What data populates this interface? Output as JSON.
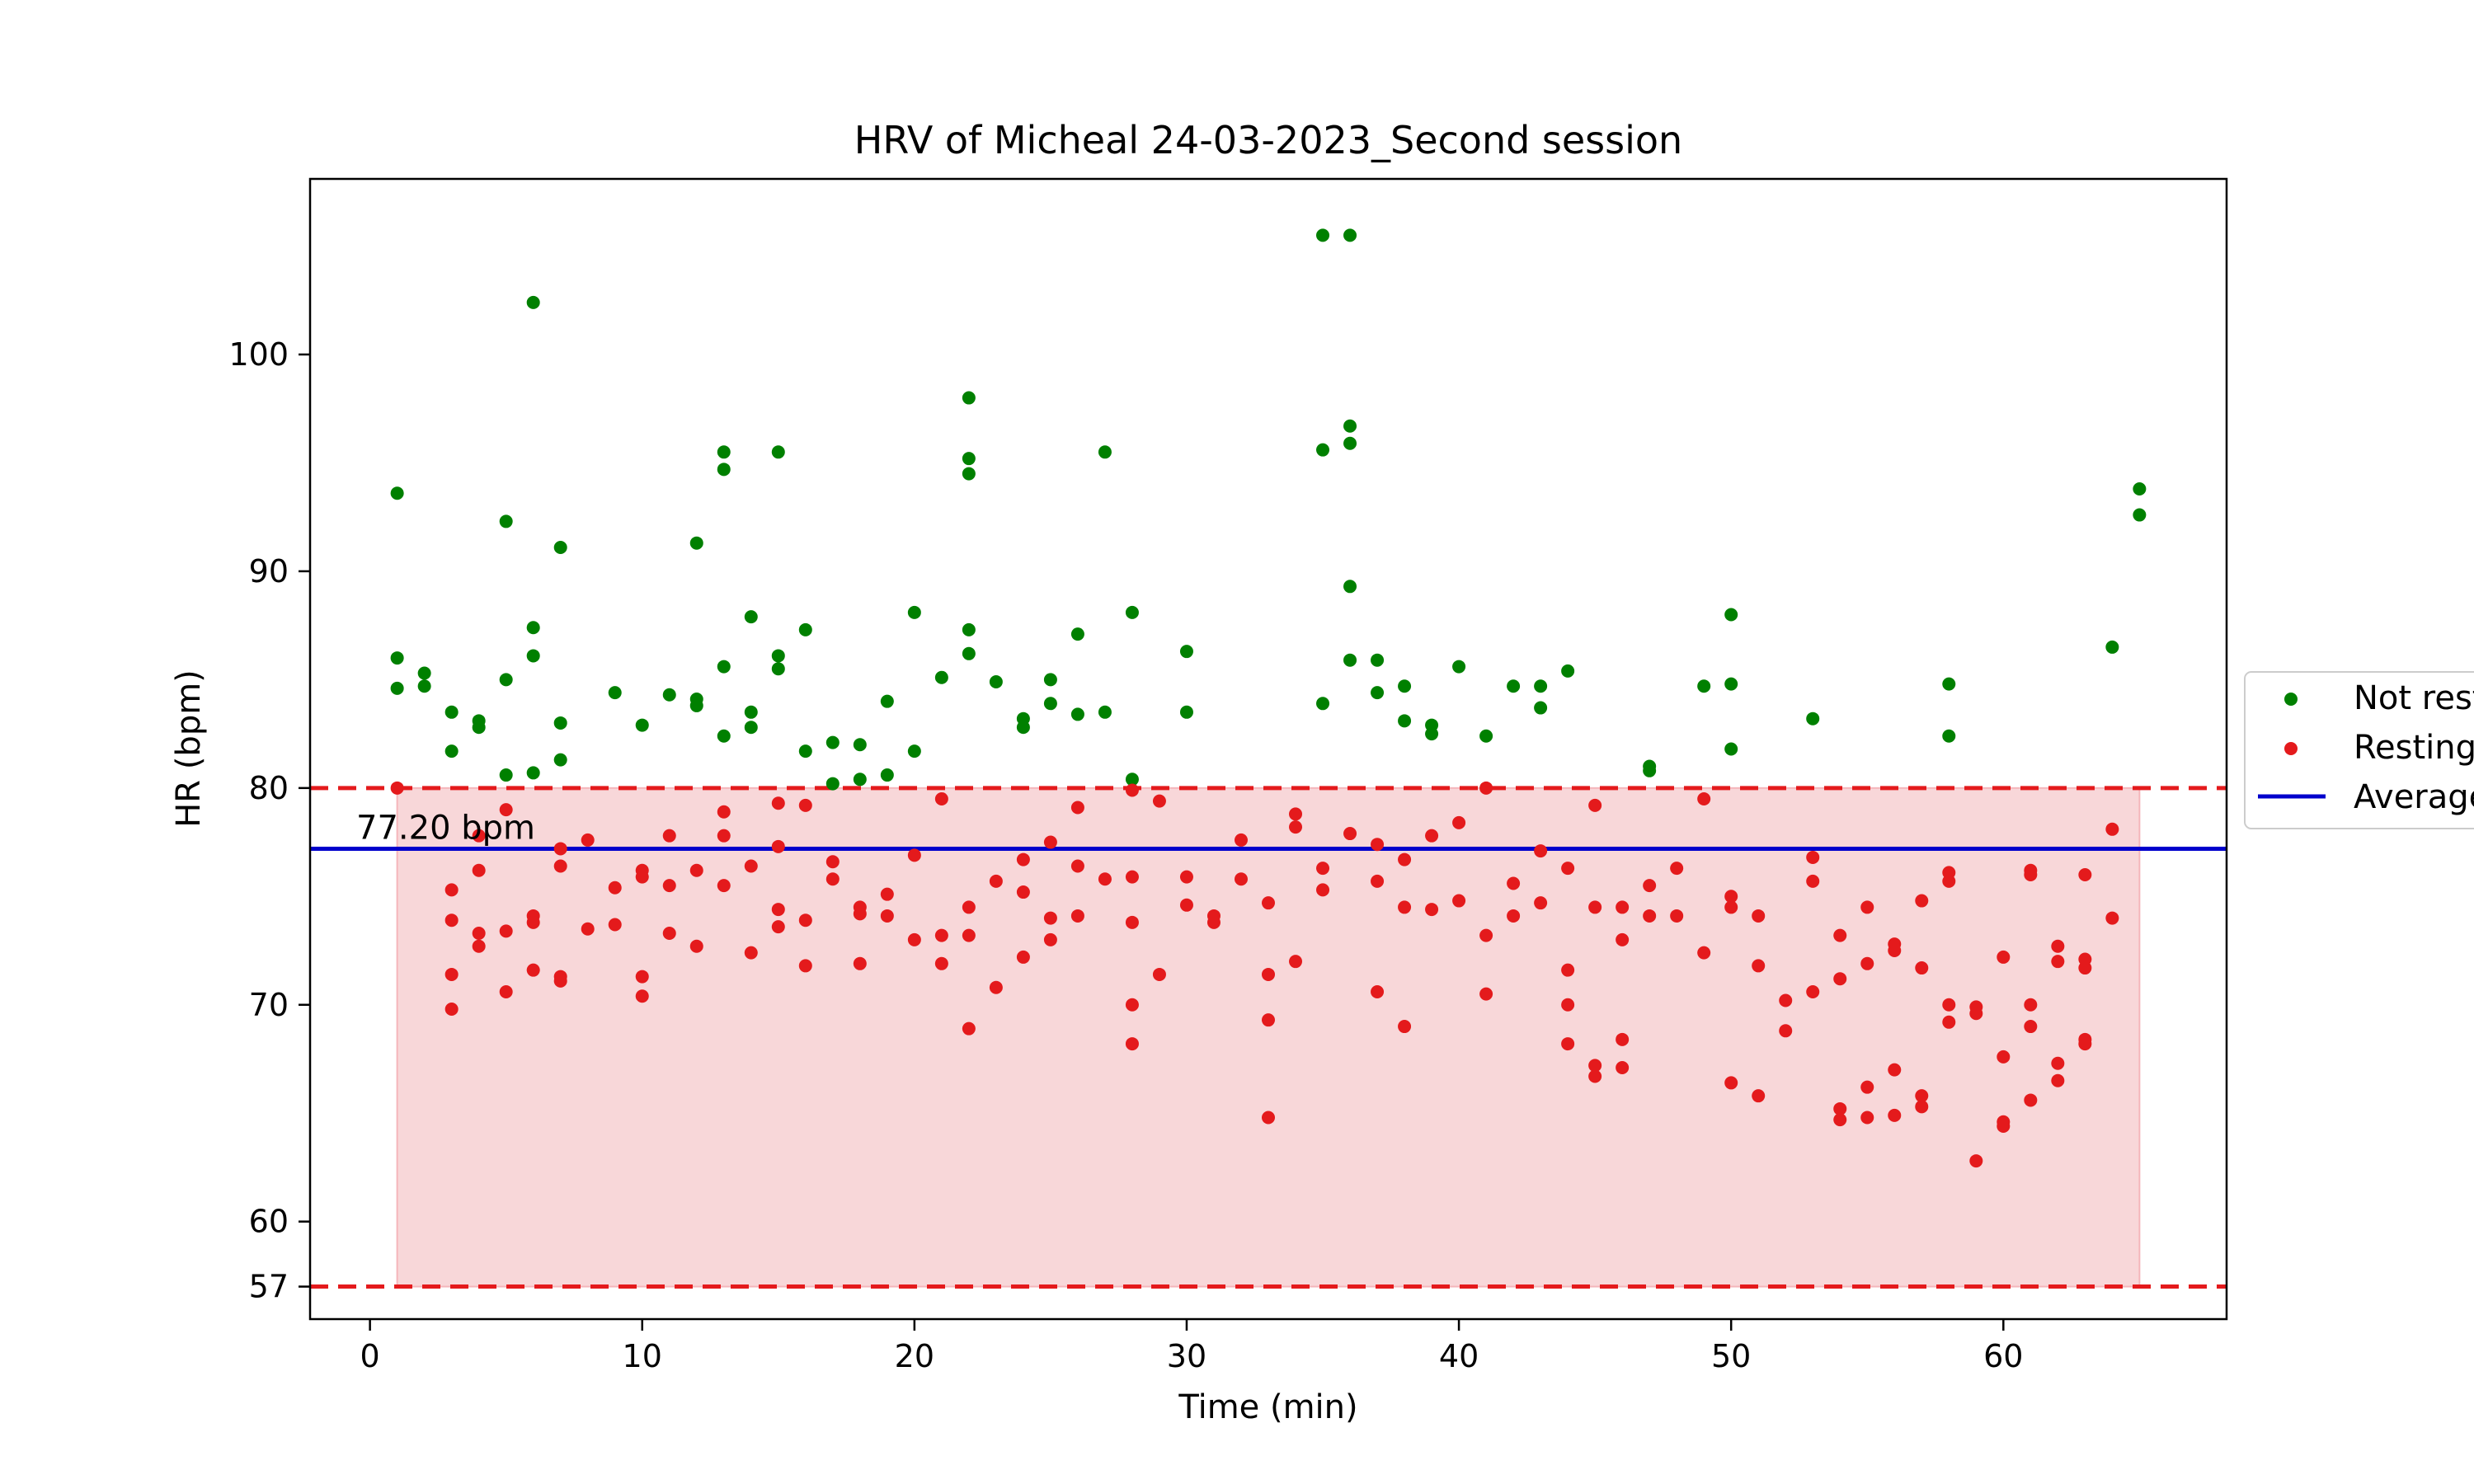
{
  "chart_data": {
    "type": "scatter",
    "title": "HRV of Micheal 24-03-2023_Second session",
    "xlabel": "Time (min)",
    "ylabel": "HR (bpm)",
    "xlim": [
      -2.2,
      68.2
    ],
    "ylim": [
      55.5,
      108.1
    ],
    "xticks": [
      0,
      10,
      20,
      30,
      40,
      50,
      60
    ],
    "yticks": [
      57,
      60,
      70,
      80,
      90,
      100
    ],
    "grid": false,
    "legend_position": "right",
    "resting_band": {
      "lower": 57,
      "upper": 80,
      "x_start": 1,
      "x_end": 65,
      "color": "#f8d7d9"
    },
    "threshold_color": "#e41a1c",
    "average": {
      "value": 77.2,
      "label": "77.20 bpm",
      "color": "#0000cc"
    },
    "legend": [
      {
        "label": "Not resting",
        "marker": "dot",
        "color": "#008000"
      },
      {
        "label": "Resting",
        "marker": "dot",
        "color": "#e41a1c"
      },
      {
        "label": "Average",
        "marker": "line",
        "color": "#0000cc"
      }
    ],
    "series": [
      {
        "name": "Not resting",
        "color": "#008000",
        "x": [
          1,
          1,
          1,
          2,
          2,
          3,
          3,
          4,
          4,
          5,
          5,
          5,
          6,
          6,
          6,
          6,
          7,
          7,
          7,
          9,
          10,
          11,
          12,
          12,
          12,
          13,
          13,
          13,
          13,
          14,
          14,
          14,
          15,
          15,
          15,
          16,
          16,
          17,
          17,
          18,
          18,
          19,
          19,
          20,
          20,
          21,
          22,
          22,
          22,
          22,
          22,
          23,
          24,
          24,
          25,
          25,
          26,
          26,
          27,
          27,
          28,
          28,
          30,
          30,
          35,
          35,
          35,
          36,
          36,
          36,
          36,
          36,
          37,
          37,
          38,
          38,
          39,
          39,
          40,
          41,
          42,
          43,
          43,
          44,
          47,
          47,
          49,
          50,
          50,
          50,
          53,
          58,
          58,
          64,
          65,
          65
        ],
        "y": [
          93.6,
          86.0,
          84.6,
          85.3,
          84.7,
          83.5,
          81.7,
          83.1,
          82.8,
          92.3,
          85.0,
          80.6,
          102.4,
          87.4,
          86.1,
          80.7,
          91.1,
          83.0,
          81.3,
          84.4,
          82.9,
          84.3,
          91.3,
          84.1,
          83.8,
          95.5,
          94.7,
          85.6,
          82.4,
          87.9,
          83.5,
          82.8,
          95.5,
          86.1,
          85.5,
          87.3,
          81.7,
          82.1,
          80.2,
          82.0,
          80.4,
          84.0,
          80.6,
          88.1,
          81.7,
          85.1,
          98.0,
          95.2,
          94.5,
          87.3,
          86.2,
          84.9,
          83.2,
          82.8,
          85.0,
          83.9,
          87.1,
          83.4,
          95.5,
          83.5,
          88.1,
          80.4,
          86.3,
          83.5,
          105.5,
          95.6,
          83.9,
          105.5,
          96.7,
          95.9,
          89.3,
          85.9,
          85.9,
          84.4,
          84.7,
          83.1,
          82.9,
          82.5,
          85.6,
          82.4,
          84.7,
          84.7,
          83.7,
          85.4,
          81.0,
          80.8,
          84.7,
          88.0,
          84.8,
          81.8,
          83.2,
          84.8,
          82.4,
          86.5,
          93.8,
          92.6
        ]
      },
      {
        "name": "Resting",
        "color": "#e41a1c",
        "x": [
          1,
          3,
          3,
          3,
          3,
          4,
          4,
          4,
          4,
          5,
          5,
          5,
          6,
          6,
          6,
          7,
          7,
          7,
          7,
          8,
          8,
          9,
          9,
          10,
          10,
          10,
          10,
          11,
          11,
          11,
          12,
          12,
          13,
          13,
          13,
          14,
          14,
          15,
          15,
          15,
          15,
          16,
          16,
          16,
          17,
          17,
          18,
          18,
          18,
          19,
          19,
          20,
          20,
          21,
          21,
          21,
          22,
          22,
          22,
          23,
          23,
          24,
          24,
          24,
          25,
          25,
          25,
          26,
          26,
          26,
          27,
          28,
          28,
          28,
          28,
          28,
          29,
          29,
          30,
          30,
          31,
          31,
          32,
          32,
          33,
          33,
          33,
          33,
          34,
          34,
          34,
          35,
          35,
          36,
          37,
          37,
          37,
          38,
          38,
          38,
          39,
          39,
          40,
          40,
          41,
          41,
          41,
          42,
          42,
          43,
          43,
          44,
          44,
          44,
          44,
          45,
          45,
          45,
          45,
          46,
          46,
          46,
          46,
          47,
          47,
          48,
          48,
          49,
          49,
          50,
          50,
          50,
          51,
          51,
          51,
          52,
          52,
          53,
          53,
          53,
          54,
          54,
          54,
          54,
          55,
          55,
          55,
          55,
          56,
          56,
          56,
          56,
          57,
          57,
          57,
          57,
          58,
          58,
          58,
          58,
          59,
          59,
          59,
          60,
          60,
          60,
          60,
          61,
          61,
          61,
          61,
          61,
          62,
          62,
          62,
          62,
          63,
          63,
          63,
          63,
          63,
          64,
          64
        ],
        "y": [
          80.0,
          75.3,
          73.9,
          71.4,
          69.8,
          77.8,
          76.2,
          73.3,
          72.7,
          79.0,
          73.4,
          70.6,
          74.1,
          73.8,
          71.6,
          77.2,
          76.4,
          71.3,
          71.1,
          77.6,
          73.5,
          75.4,
          73.7,
          76.2,
          75.9,
          71.3,
          70.4,
          77.8,
          75.5,
          73.3,
          76.2,
          72.7,
          78.9,
          77.8,
          75.5,
          76.4,
          72.4,
          79.3,
          77.3,
          74.4,
          73.6,
          79.2,
          73.9,
          71.8,
          76.6,
          75.8,
          74.5,
          74.2,
          71.9,
          75.1,
          74.1,
          76.9,
          73.0,
          79.5,
          73.2,
          71.9,
          74.5,
          73.2,
          68.9,
          75.7,
          70.8,
          76.7,
          75.2,
          72.2,
          77.5,
          74.0,
          73.0,
          79.1,
          76.4,
          74.1,
          75.8,
          79.9,
          75.9,
          73.8,
          70.0,
          68.2,
          79.4,
          71.4,
          75.9,
          74.6,
          74.1,
          73.8,
          77.6,
          75.8,
          74.7,
          71.4,
          69.3,
          64.8,
          78.8,
          78.2,
          72.0,
          76.3,
          75.3,
          77.9,
          77.4,
          75.7,
          70.6,
          76.7,
          74.5,
          69.0,
          77.8,
          74.4,
          78.4,
          74.8,
          80.0,
          73.2,
          70.5,
          75.6,
          74.1,
          77.1,
          74.7,
          76.3,
          71.6,
          70.0,
          68.2,
          79.2,
          74.5,
          67.2,
          66.7,
          74.5,
          73.0,
          68.4,
          67.1,
          75.5,
          74.1,
          76.3,
          74.1,
          79.5,
          72.4,
          75.0,
          74.5,
          66.4,
          74.1,
          71.8,
          65.8,
          70.2,
          68.8,
          76.8,
          75.7,
          70.6,
          73.2,
          71.2,
          65.2,
          64.7,
          74.5,
          71.9,
          66.2,
          64.8,
          72.8,
          72.5,
          67.0,
          64.9,
          74.8,
          71.7,
          65.8,
          65.3,
          76.1,
          75.7,
          70.0,
          69.2,
          69.9,
          69.6,
          62.8,
          72.2,
          67.6,
          64.6,
          64.4,
          76.2,
          76.0,
          70.0,
          69.0,
          65.6,
          72.7,
          72.0,
          67.3,
          66.5,
          72.1,
          71.7,
          68.4,
          68.2,
          76.0,
          78.1,
          74.0
        ]
      }
    ]
  }
}
